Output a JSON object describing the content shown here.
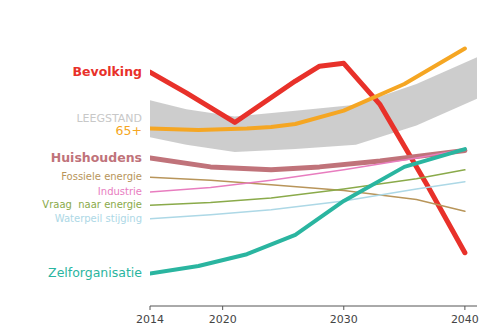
{
  "chart_data": {
    "type": "line",
    "xlim": [
      2014,
      2041
    ],
    "xticks": [
      2014,
      2020,
      2030,
      2040
    ],
    "ylim": [
      0,
      1
    ],
    "tick_labels": "x",
    "series": [
      {
        "name": "LEEGSTAND",
        "type": "area",
        "color": "#c8c8c8",
        "x": [
          2014,
          2017,
          2021,
          2026,
          2031,
          2036,
          2041
        ],
        "lower": [
          0.57,
          0.545,
          0.52,
          0.53,
          0.545,
          0.61,
          0.7
        ],
        "values": [
          0.695,
          0.665,
          0.64,
          0.66,
          0.68,
          0.75,
          0.84
        ]
      },
      {
        "name": "Bevolking",
        "color": "#e8312a",
        "x": [
          2014,
          2017,
          2021,
          2026,
          2028,
          2030,
          2033,
          2037,
          2040
        ],
        "values": [
          0.79,
          0.72,
          0.62,
          0.76,
          0.81,
          0.82,
          0.68,
          0.4,
          0.18
        ]
      },
      {
        "name": "65+",
        "color": "#f5a623",
        "x": [
          2014,
          2018,
          2022,
          2024,
          2026,
          2030,
          2035,
          2040
        ],
        "values": [
          0.6,
          0.595,
          0.6,
          0.605,
          0.615,
          0.66,
          0.75,
          0.87
        ]
      },
      {
        "name": "Huishoudens",
        "color": "#c0737a",
        "x": [
          2014,
          2019,
          2024,
          2028,
          2033,
          2037,
          2040
        ],
        "values": [
          0.5,
          0.47,
          0.46,
          0.47,
          0.49,
          0.51,
          0.525
        ]
      },
      {
        "name": "Fossiele energie",
        "color": "#b8955a",
        "x": [
          2014,
          2019,
          2024,
          2030,
          2036,
          2040
        ],
        "values": [
          0.435,
          0.425,
          0.41,
          0.39,
          0.36,
          0.32
        ]
      },
      {
        "name": "Industrie",
        "color": "#e87dbf",
        "x": [
          2014,
          2019,
          2024,
          2030,
          2036,
          2040
        ],
        "values": [
          0.385,
          0.4,
          0.425,
          0.46,
          0.5,
          0.53
        ]
      },
      {
        "name": "Vraag  naar energie",
        "color": "#8aaa4a",
        "x": [
          2014,
          2019,
          2024,
          2030,
          2036,
          2040
        ],
        "values": [
          0.34,
          0.35,
          0.365,
          0.395,
          0.43,
          0.46
        ]
      },
      {
        "name": "Waterpeil stijging",
        "color": "#add8e6",
        "x": [
          2014,
          2019,
          2024,
          2030,
          2036,
          2040
        ],
        "values": [
          0.295,
          0.308,
          0.325,
          0.355,
          0.395,
          0.42
        ]
      },
      {
        "name": "Zelforganisatie",
        "color": "#2ab5a0",
        "x": [
          2014,
          2018,
          2022,
          2026,
          2030,
          2035,
          2040
        ],
        "values": [
          0.11,
          0.135,
          0.175,
          0.24,
          0.355,
          0.47,
          0.53
        ]
      }
    ]
  }
}
